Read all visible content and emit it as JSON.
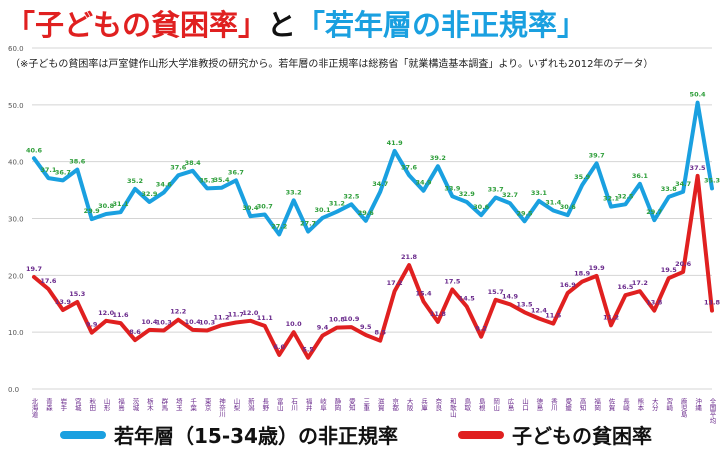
{
  "title": {
    "part1": "「子どもの貧困率」",
    "part2": "と",
    "part3": "「若年層の非正規率」"
  },
  "subtitle": "（※子どもの貧困率は戸室健作山形大学准教授の研究から。若年層の非正規率は総務省「就業構造基本調査」より。いずれも2012年のデータ）",
  "legend": {
    "youth": "若年層（15-34歳）の非正規率",
    "child": "子どもの貧困率"
  },
  "colors": {
    "youth": "#1aa0e0",
    "child": "#e02020",
    "youth_label": "#2e9e3a",
    "child_label": "#6a2a8c",
    "x_label": "#6a2a8c"
  },
  "chart_data": {
    "type": "line",
    "categories": [
      "北海道",
      "青森",
      "岩手",
      "宮城",
      "秋田",
      "山形",
      "福島",
      "茨城",
      "栃木",
      "群馬",
      "埼玉",
      "千葉",
      "東京",
      "神奈川",
      "山梨",
      "新潟",
      "長野",
      "富山",
      "石川",
      "福井",
      "岐阜",
      "静岡",
      "愛知",
      "三重",
      "滋賀",
      "京都",
      "大阪",
      "兵庫",
      "奈良",
      "和歌山",
      "鳥取",
      "島根",
      "岡山",
      "広島",
      "山口",
      "徳島",
      "香川",
      "愛媛",
      "高知",
      "福岡",
      "佐賀",
      "長崎",
      "熊本",
      "大分",
      "宮崎",
      "鹿児島",
      "沖縄",
      "全国平均"
    ],
    "series": [
      {
        "name": "若年層（15-34歳）の非正規率",
        "values": [
          40.6,
          37.1,
          36.7,
          38.6,
          29.9,
          30.8,
          31.1,
          35.2,
          32.9,
          34.6,
          37.6,
          38.4,
          35.3,
          35.4,
          36.7,
          30.4,
          30.7,
          27.2,
          33.2,
          27.7,
          30.1,
          31.2,
          32.5,
          29.6,
          34.7,
          41.9,
          37.6,
          34.9,
          39.2,
          33.9,
          32.9,
          30.6,
          33.7,
          32.7,
          29.5,
          33.1,
          31.4,
          30.6,
          35.9,
          39.7,
          32.1,
          32.5,
          36.1,
          29.7,
          33.8,
          34.7,
          50.4,
          35.3
        ]
      },
      {
        "name": "子どもの貧困率",
        "values": [
          19.7,
          17.6,
          13.9,
          15.3,
          9.9,
          12.0,
          11.6,
          8.6,
          10.4,
          10.3,
          12.2,
          10.4,
          10.3,
          11.2,
          11.7,
          12.0,
          11.1,
          6.0,
          10.0,
          5.5,
          9.4,
          10.8,
          10.9,
          9.5,
          8.5,
          17.2,
          21.8,
          15.4,
          11.8,
          17.5,
          14.5,
          9.2,
          15.7,
          14.9,
          13.5,
          12.4,
          11.5,
          16.9,
          18.9,
          19.9,
          11.2,
          16.5,
          17.2,
          13.8,
          19.5,
          20.6,
          37.5,
          13.8
        ]
      }
    ],
    "youth_labels": [
      "40.6",
      "37.1",
      "36.7",
      "38.6",
      "29.9",
      "30.8",
      "31.1",
      "35.2",
      "32.9",
      "34.6",
      "37.6",
      "38.4",
      "35.3",
      "35.4",
      "36.7",
      "30.4",
      "30.7",
      "27.2",
      "33.2",
      "27.7",
      "30.1",
      "31.2",
      "32.5",
      "29.6",
      "34.7",
      "41.9",
      "37.6",
      "34.9",
      "39.2",
      "33.9",
      "32.9",
      "30.6",
      "33.7",
      "32.7",
      "29.5",
      "33.1",
      "31.4",
      "30.6",
      "35.9",
      "39.7",
      "32.1",
      "32.5",
      "36.1",
      "29.7",
      "33.8",
      "34.7",
      "50.4",
      "35.3"
    ],
    "child_labels": [
      "19.7",
      "17.6",
      "13.9",
      "15.3",
      "9.9",
      "12.0",
      "11.6",
      "8.6",
      "10.4",
      "10.3",
      "12.2",
      "10.4",
      "10.3",
      "11.2",
      "11.7",
      "12.0",
      "11.1",
      "6.0",
      "10.0",
      "5.5",
      "9.4",
      "10.8",
      "10.9",
      "9.5",
      "8.5",
      "17.2",
      "21.8",
      "15.4",
      "11.8",
      "17.5",
      "14.5",
      "9.2",
      "15.7",
      "14.9",
      "13.5",
      "12.4",
      "11.5",
      "16.9",
      "18.9",
      "19.9",
      "11.2",
      "16.5",
      "17.2",
      "13.8",
      "19.5",
      "20.6",
      "37.5",
      "13.8"
    ],
    "yticks": [
      "0.0",
      "10.0",
      "20.0",
      "30.0",
      "40.0",
      "50.0",
      "60.0"
    ],
    "ylim": [
      0,
      60
    ],
    "grid": true,
    "legend_position": "bottom"
  }
}
